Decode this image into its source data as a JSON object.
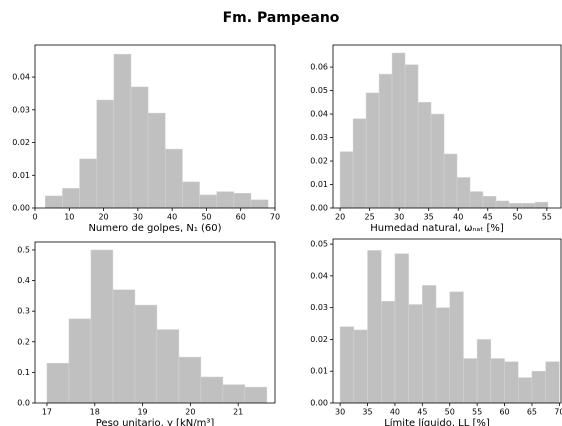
{
  "title": "Fm. Pampeano",
  "chart_data": [
    {
      "type": "histogram",
      "xlabel": "Numero de golpes, N₁ (60)",
      "color": "#c0c0c0",
      "bins": [
        3,
        8,
        13,
        18,
        23,
        28,
        33,
        38,
        43,
        48,
        53,
        58,
        63,
        68
      ],
      "values": [
        0.0037,
        0.006,
        0.015,
        0.033,
        0.047,
        0.037,
        0.029,
        0.018,
        0.008,
        0.004,
        0.005,
        0.0045,
        0.0025
      ],
      "xlim": [
        0,
        70
      ],
      "xticks": [
        0,
        10,
        20,
        30,
        40,
        50,
        60,
        70
      ],
      "ylim": [
        0,
        0.0498
      ],
      "yticks": [
        {
          "value": 0,
          "label": "0.00"
        },
        {
          "value": 0.01,
          "label": "0.01"
        },
        {
          "value": 0.02,
          "label": "0.02"
        },
        {
          "value": 0.03,
          "label": "0.03"
        },
        {
          "value": 0.04,
          "label": "0.04"
        }
      ]
    },
    {
      "type": "histogram",
      "xlabel": "Humedad natural, ωₙₐₜ [%]",
      "color": "#c0c0c0",
      "bins": [
        20,
        22.2,
        24.4,
        26.6,
        28.8,
        31,
        33.2,
        35.4,
        37.6,
        39.8,
        42,
        44.2,
        46.4,
        48.6,
        50.8,
        53,
        55.2
      ],
      "values": [
        0.024,
        0.038,
        0.049,
        0.057,
        0.066,
        0.061,
        0.045,
        0.04,
        0.023,
        0.013,
        0.007,
        0.005,
        0.003,
        0.002,
        0.002,
        0.0025
      ],
      "xlim": [
        18.8,
        57.4
      ],
      "xticks": [
        20,
        25,
        30,
        35,
        40,
        45,
        50,
        55
      ],
      "ylim": [
        0,
        0.0694
      ],
      "yticks": [
        {
          "value": 0,
          "label": "0.00"
        },
        {
          "value": 0.01,
          "label": "0.01"
        },
        {
          "value": 0.02,
          "label": "0.02"
        },
        {
          "value": 0.03,
          "label": "0.03"
        },
        {
          "value": 0.04,
          "label": "0.04"
        },
        {
          "value": 0.05,
          "label": "0.05"
        },
        {
          "value": 0.06,
          "label": "0.06"
        }
      ]
    },
    {
      "type": "histogram",
      "xlabel": "Peso unitario, γ [kN/m³]",
      "color": "#c0c0c0",
      "bins": [
        17,
        17.46,
        17.92,
        18.38,
        18.84,
        19.3,
        19.76,
        20.22,
        20.68,
        21.14,
        21.6
      ],
      "values": [
        0.13,
        0.275,
        0.5,
        0.37,
        0.32,
        0.24,
        0.15,
        0.085,
        0.06,
        0.052
      ],
      "xlim": [
        16.75,
        21.77
      ],
      "xticks": [
        17,
        18,
        19,
        20,
        21
      ],
      "ylim": [
        0,
        0.526
      ],
      "yticks": [
        {
          "value": 0,
          "label": "0.0"
        },
        0.1,
        0.2,
        0.3,
        0.4,
        0.5
      ]
    },
    {
      "type": "histogram",
      "xlabel": "Límite líquido, LL [%]",
      "color": "#c0c0c0",
      "bins": [
        30,
        32.5,
        35,
        37.5,
        40,
        42.5,
        45,
        47.5,
        50,
        52.5,
        55,
        57.5,
        60,
        62.5,
        65,
        67.5,
        70
      ],
      "values": [
        0.024,
        0.023,
        0.048,
        0.032,
        0.047,
        0.031,
        0.037,
        0.03,
        0.035,
        0.014,
        0.02,
        0.014,
        0.013,
        0.008,
        0.01,
        0.013
      ],
      "xlim": [
        28.7,
        70.3
      ],
      "xticks": [
        30,
        35,
        40,
        45,
        50,
        55,
        60,
        65,
        70
      ],
      "ylim": [
        0,
        0.0516
      ],
      "yticks": [
        {
          "value": 0,
          "label": "0.00"
        },
        {
          "value": 0.01,
          "label": "0.01"
        },
        {
          "value": 0.02,
          "label": "0.02"
        },
        {
          "value": 0.03,
          "label": "0.03"
        },
        {
          "value": 0.04,
          "label": "0.04"
        },
        {
          "value": 0.05,
          "label": "0.05"
        }
      ]
    }
  ]
}
